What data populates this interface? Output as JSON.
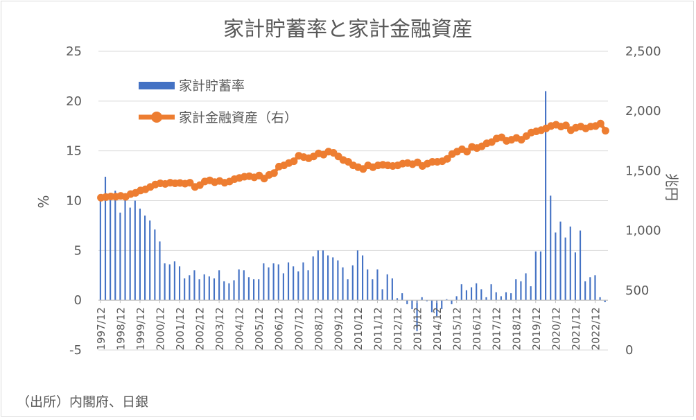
{
  "chart_data": {
    "type": "bar+line",
    "title": "家計貯蓄率と家計金融資産",
    "source_note": "（出所）内閣府、日銀",
    "left_axis": {
      "label": "%",
      "ylim": [
        -5,
        25
      ],
      "ticks": [
        "25",
        "20",
        "15",
        "10",
        "5",
        "0",
        "-5"
      ]
    },
    "right_axis": {
      "label": "兆円",
      "ylim": [
        0,
        2500
      ],
      "ticks": [
        "2,500",
        "2,000",
        "1,500",
        "1,000",
        "500",
        "0"
      ]
    },
    "x_labels": [
      "1997/12",
      "1998/12",
      "1999/12",
      "2000/12",
      "2001/12",
      "2002/12",
      "2003/12",
      "2004/12",
      "2005/12",
      "2006/12",
      "2007/12",
      "2008/12",
      "2009/12",
      "2010/12",
      "2011/12",
      "2012/12",
      "2013/12",
      "2014/12",
      "2015/12",
      "2016/12",
      "2017/12",
      "2018/12",
      "2019/12",
      "2020/12",
      "2021/12",
      "2022/12"
    ],
    "series": [
      {
        "name": "家計貯蓄率",
        "type": "bar",
        "axis": "left",
        "color": "#4472C4",
        "values": [
          10.2,
          12.4,
          10.6,
          11.0,
          8.8,
          10.2,
          9.3,
          10.0,
          9.2,
          8.5,
          8.0,
          7.1,
          5.9,
          3.7,
          3.6,
          3.9,
          3.4,
          2.2,
          2.5,
          3.0,
          2.1,
          2.6,
          2.4,
          2.2,
          3.0,
          1.9,
          1.7,
          2.0,
          3.1,
          3.0,
          2.3,
          2.1,
          2.1,
          3.7,
          3.3,
          3.7,
          3.6,
          2.7,
          3.8,
          3.4,
          2.9,
          3.8,
          3.0,
          4.4,
          5.0,
          5.0,
          4.5,
          4.3,
          4.0,
          3.3,
          2.1,
          3.5,
          5.0,
          4.5,
          3.1,
          2.1,
          3.1,
          1.1,
          2.6,
          2.2,
          0.2,
          0.7,
          -0.4,
          -0.9,
          -3.1,
          0.3,
          -0.1,
          -1.2,
          -1.6,
          -0.9,
          0.1,
          -0.4,
          0.4,
          1.6,
          1.0,
          1.3,
          1.7,
          1.1,
          0.3,
          1.6,
          0.8,
          0.4,
          0.8,
          0.7,
          2.1,
          1.9,
          2.7,
          1.4,
          4.9,
          4.9,
          21.0,
          10.5,
          6.8,
          7.9,
          6.3,
          7.4,
          4.8,
          7.0,
          1.9,
          2.3,
          2.5,
          0.3,
          -0.2
        ]
      },
      {
        "name": "家計金融資産（右）",
        "type": "line",
        "axis": "right",
        "color": "#ED7D31",
        "values": [
          1275,
          1280,
          1285,
          1283,
          1290,
          1282,
          1305,
          1315,
          1335,
          1345,
          1365,
          1385,
          1395,
          1390,
          1400,
          1395,
          1398,
          1392,
          1400,
          1365,
          1380,
          1410,
          1420,
          1405,
          1415,
          1400,
          1410,
          1430,
          1440,
          1450,
          1455,
          1445,
          1460,
          1435,
          1465,
          1480,
          1535,
          1545,
          1565,
          1580,
          1625,
          1615,
          1605,
          1620,
          1645,
          1635,
          1660,
          1650,
          1620,
          1590,
          1575,
          1545,
          1530,
          1515,
          1545,
          1530,
          1545,
          1550,
          1545,
          1540,
          1545,
          1560,
          1565,
          1555,
          1570,
          1540,
          1560,
          1575,
          1575,
          1580,
          1600,
          1640,
          1660,
          1680,
          1660,
          1700,
          1690,
          1705,
          1730,
          1740,
          1770,
          1780,
          1750,
          1760,
          1775,
          1760,
          1790,
          1820,
          1830,
          1840,
          1855,
          1875,
          1885,
          1870,
          1880,
          1840,
          1860,
          1870,
          1855,
          1870,
          1875,
          1895,
          1835
        ]
      }
    ],
    "legend": {
      "placement": "top-left",
      "entries": [
        "家計貯蓄率",
        "家計金融資産（右）"
      ]
    },
    "grid": true
  }
}
